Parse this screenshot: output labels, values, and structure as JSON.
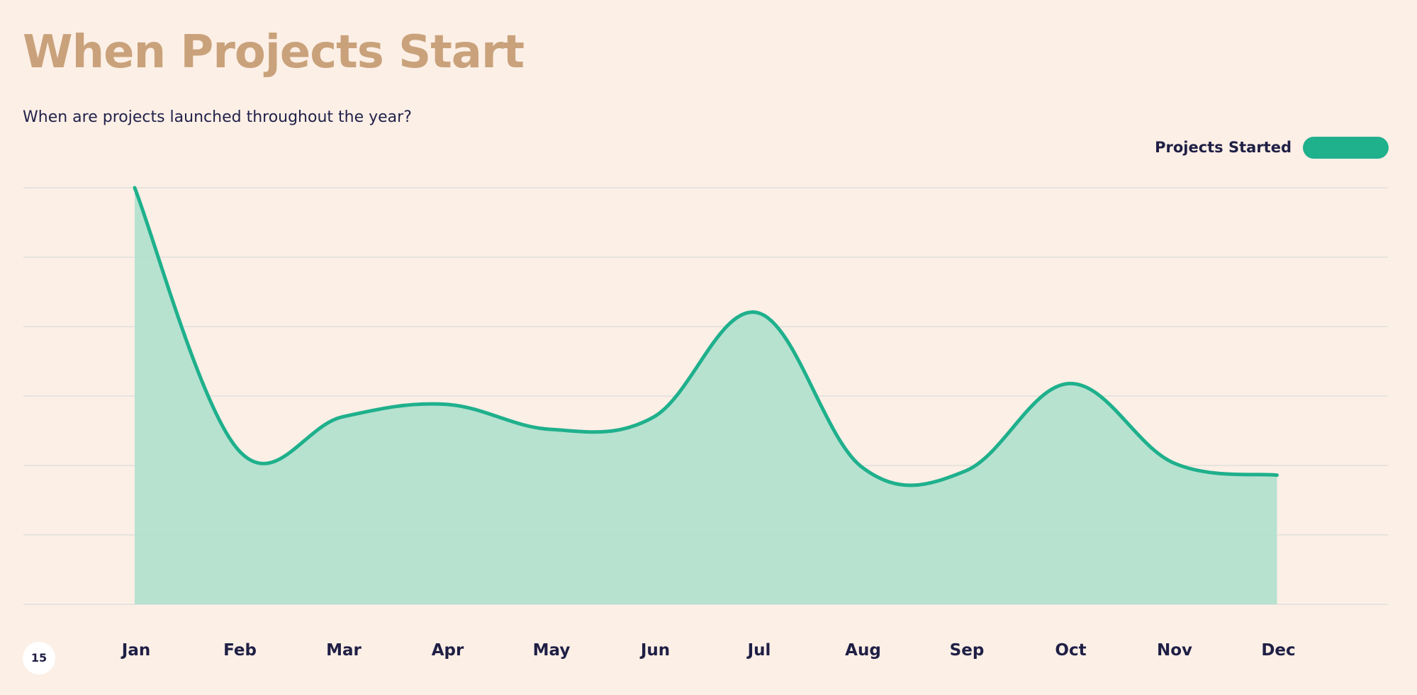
{
  "page": {
    "number": "15"
  },
  "colors": {
    "background": "#fcefe6",
    "title": "#c9a27b",
    "text": "#1f1f45",
    "series_line": "#1fb08c",
    "series_fill": "#b3e0cf",
    "gridline": "#d9ddd8"
  },
  "chart_data": {
    "type": "area",
    "title": "When Projects Start",
    "subtitle": "When are projects launched throughout the year?",
    "categories": [
      "Jan",
      "Feb",
      "Mar",
      "Apr",
      "May",
      "Jun",
      "Jul",
      "Aug",
      "Sep",
      "Oct",
      "Nov",
      "Dec"
    ],
    "series": [
      {
        "name": "Projects Started",
        "values": [
          100,
          37,
          45,
          48,
          42,
          45,
          70,
          33,
          32,
          53,
          34,
          31
        ]
      }
    ],
    "xlabel": "",
    "ylabel": "",
    "ylim": [
      0,
      100
    ],
    "y_gridlines": 7,
    "grid": true,
    "smooth": true,
    "y_tick_labels_shown": false,
    "legend_position": "top-right"
  }
}
